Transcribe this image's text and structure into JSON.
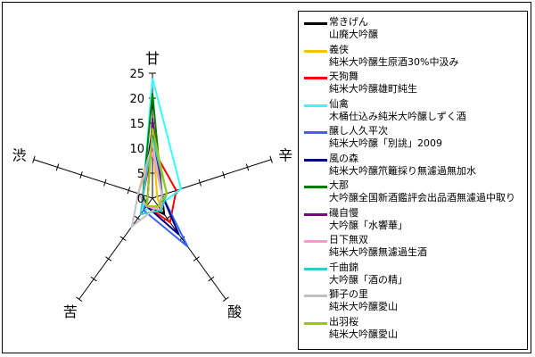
{
  "chart_data": {
    "type": "radar",
    "title": "",
    "axes": [
      "甘",
      "辛",
      "酸",
      "苦",
      "渋"
    ],
    "range": [
      0,
      25
    ],
    "ticks": [
      0,
      5,
      10,
      15,
      20,
      25
    ],
    "grid": false,
    "legend_position": "right",
    "series": [
      {
        "name": "常きげん",
        "subname": "山廃大吟醸",
        "color": "#000000",
        "values": [
          13,
          2,
          4,
          2,
          2
        ]
      },
      {
        "name": "義侠",
        "subname": "純米大吟醸生原酒30%中汲み",
        "color": "#ffc000",
        "values": [
          12,
          1,
          3,
          2,
          3
        ]
      },
      {
        "name": "天狗舞",
        "subname": "純米大吟醸雄町純生",
        "color": "#ff0000",
        "values": [
          10,
          5,
          6,
          2,
          2
        ]
      },
      {
        "name": "仙禽",
        "subname": "木桶仕込み純米大吟醸しずく酒",
        "color": "#33ffff",
        "values": [
          24,
          6,
          2,
          3,
          2
        ]
      },
      {
        "name": "醸し人久平次",
        "subname": "純米大吟醸「別誂」2009",
        "color": "#3366ff",
        "values": [
          15,
          2,
          12,
          3,
          1
        ]
      },
      {
        "name": "風の森",
        "subname": "純米大吟醸笊籬採り無濾過無加水",
        "color": "#000080",
        "values": [
          14,
          2,
          9,
          2,
          2
        ]
      },
      {
        "name": "大那",
        "subname": "大吟醸全国新酒鑑評会出品酒無濾過中取り",
        "color": "#008000",
        "values": [
          21,
          2,
          3,
          2,
          2
        ]
      },
      {
        "name": "磯自慢",
        "subname": "大吟醸「水響華」",
        "color": "#800080",
        "values": [
          16,
          2,
          3,
          2,
          1
        ]
      },
      {
        "name": "日下無双",
        "subname": "純米大吟醸無濾過生酒",
        "color": "#ff99cc",
        "values": [
          9,
          2,
          3,
          2,
          3
        ]
      },
      {
        "name": "千曲錦",
        "subname": "大吟醸「酒の精」",
        "color": "#33cccc",
        "values": [
          12,
          3,
          3,
          4,
          2
        ]
      },
      {
        "name": "獅子の里",
        "subname": "純米大吟醸愛山",
        "color": "#c0c0c0",
        "values": [
          11,
          2,
          2,
          7,
          3
        ]
      },
      {
        "name": "出羽桜",
        "subname": "純米大吟醸愛山",
        "color": "#99cc00",
        "values": [
          14,
          3,
          2,
          2,
          1
        ]
      }
    ]
  }
}
